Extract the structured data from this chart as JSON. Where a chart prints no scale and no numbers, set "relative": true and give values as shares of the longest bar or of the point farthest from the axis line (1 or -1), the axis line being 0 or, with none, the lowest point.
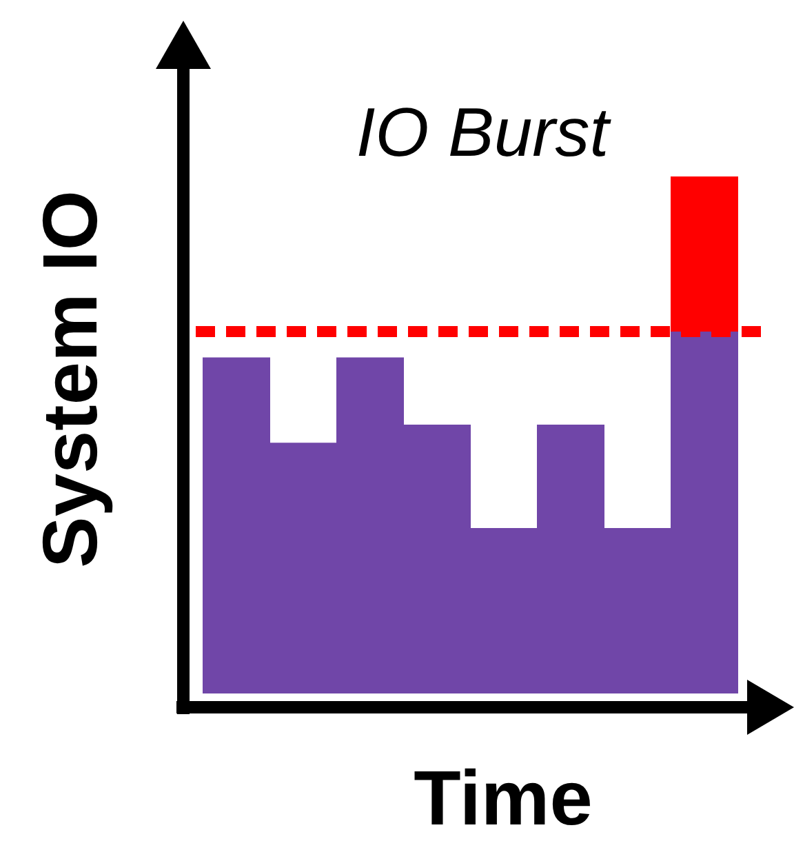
{
  "chart_data": {
    "type": "bar",
    "relative": true,
    "stacked": true,
    "xlabel": "Time",
    "ylabel": "System IO",
    "annotations": [
      {
        "text": "IO Burst"
      }
    ],
    "categories": [
      null,
      null,
      null,
      null,
      null,
      null,
      null,
      null
    ],
    "series": [
      {
        "color": "#7046a8",
        "values": [
          0.65,
          0.485,
          0.65,
          0.52,
          0.32,
          0.52,
          0.32,
          0.7
        ]
      },
      {
        "color": "#ff0000",
        "values": [
          null,
          null,
          null,
          null,
          null,
          null,
          null,
          0.3
        ]
      }
    ],
    "ref_lines": [
      {
        "axis": "y",
        "value": 0.7,
        "color": "#ff0000",
        "line_style": "dashed"
      }
    ]
  }
}
